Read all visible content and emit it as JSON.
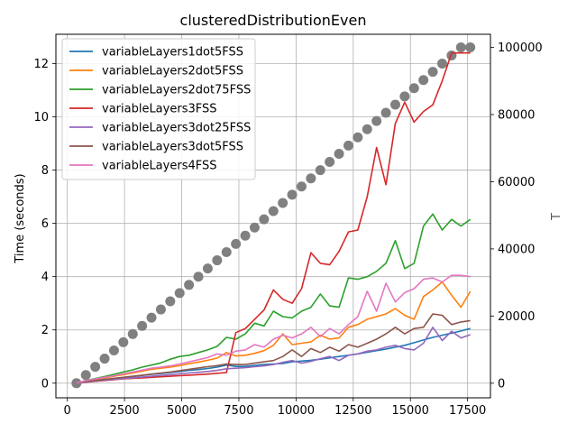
{
  "chart_data": {
    "type": "line",
    "title": "clusteredDistributionEven",
    "xlabel": "",
    "ylabel": "Time (seconds)",
    "y2label": "T",
    "xlim": [
      -500,
      18500
    ],
    "ylim": [
      -0.55,
      13.1
    ],
    "y2lim": [
      -4350,
      103900
    ],
    "xticks": [
      0,
      2500,
      5000,
      7500,
      10000,
      12500,
      15000,
      17500
    ],
    "yticks": [
      0,
      2,
      4,
      6,
      8,
      10,
      12
    ],
    "y2ticks": [
      0,
      20000,
      40000,
      60000,
      80000,
      100000
    ],
    "grid": true,
    "legend_position": "upper-left",
    "x": [
      400,
      810,
      1220,
      1630,
      2040,
      2450,
      2860,
      3270,
      3680,
      4090,
      4500,
      4910,
      5320,
      5730,
      6140,
      6550,
      6960,
      7370,
      7780,
      8190,
      8600,
      9010,
      9420,
      9830,
      10240,
      10650,
      11060,
      11470,
      11880,
      12290,
      12700,
      13110,
      13520,
      13930,
      14340,
      14750,
      15160,
      15570,
      15980,
      16390,
      16800,
      17210,
      17620
    ],
    "series": [
      {
        "name": "variableLayers1dot5FSS",
        "color": "#1f77b4",
        "values": [
          0,
          0.05,
          0.09,
          0.13,
          0.17,
          0.21,
          0.25,
          0.29,
          0.33,
          0.36,
          0.4,
          0.44,
          0.48,
          0.51,
          0.55,
          0.6,
          0.68,
          0.63,
          0.63,
          0.67,
          0.7,
          0.72,
          0.74,
          0.8,
          0.83,
          0.86,
          0.9,
          0.95,
          1.0,
          1.05,
          1.1,
          1.16,
          1.22,
          1.28,
          1.35,
          1.42,
          1.52,
          1.62,
          1.72,
          1.8,
          1.88,
          1.96,
          2.05
        ]
      },
      {
        "name": "variableLayers2dot5FSS",
        "color": "#ff7f0e",
        "values": [
          0,
          0.08,
          0.14,
          0.2,
          0.26,
          0.32,
          0.38,
          0.45,
          0.52,
          0.56,
          0.6,
          0.66,
          0.73,
          0.79,
          0.86,
          0.94,
          1.15,
          1.02,
          1.05,
          1.12,
          1.22,
          1.42,
          1.85,
          1.45,
          1.5,
          1.55,
          1.8,
          1.65,
          1.7,
          2.1,
          2.2,
          2.4,
          2.5,
          2.6,
          2.8,
          2.55,
          2.4,
          3.25,
          3.5,
          3.8,
          3.3,
          2.85,
          3.45
        ]
      },
      {
        "name": "variableLayers2dot75FSS",
        "color": "#2ca02c",
        "values": [
          0,
          0.1,
          0.17,
          0.25,
          0.33,
          0.42,
          0.5,
          0.6,
          0.68,
          0.76,
          0.9,
          1.0,
          1.05,
          1.15,
          1.25,
          1.38,
          1.72,
          1.65,
          1.85,
          2.25,
          2.15,
          2.7,
          2.5,
          2.45,
          2.7,
          2.85,
          3.35,
          2.9,
          2.85,
          3.95,
          3.9,
          4.0,
          4.2,
          4.5,
          5.35,
          4.3,
          4.5,
          5.9,
          6.35,
          5.75,
          6.15,
          5.9,
          6.15
        ]
      },
      {
        "name": "variableLayers3FSS",
        "color": "#d62728",
        "values": [
          0,
          0.04,
          0.07,
          0.1,
          0.13,
          0.16,
          0.18,
          0.2,
          0.22,
          0.24,
          0.26,
          0.28,
          0.3,
          0.32,
          0.34,
          0.37,
          0.4,
          1.9,
          2.05,
          2.4,
          2.75,
          3.5,
          3.15,
          3.0,
          3.55,
          4.9,
          4.5,
          4.45,
          4.95,
          5.68,
          5.75,
          7.0,
          8.85,
          7.45,
          9.75,
          10.55,
          9.8,
          10.2,
          10.45,
          11.35,
          12.4,
          12.4,
          12.4
        ]
      },
      {
        "name": "variableLayers3dot25FSS",
        "color": "#9467bd",
        "values": [
          0,
          0.05,
          0.08,
          0.11,
          0.14,
          0.17,
          0.2,
          0.23,
          0.26,
          0.29,
          0.32,
          0.35,
          0.38,
          0.41,
          0.44,
          0.48,
          0.54,
          0.56,
          0.58,
          0.62,
          0.65,
          0.7,
          0.78,
          0.85,
          0.75,
          0.82,
          0.92,
          1.0,
          0.85,
          1.05,
          1.1,
          1.2,
          1.25,
          1.35,
          1.42,
          1.3,
          1.25,
          1.5,
          2.1,
          1.6,
          1.95,
          1.7,
          1.82
        ]
      },
      {
        "name": "variableLayers3dot5FSS",
        "color": "#8c564b",
        "values": [
          0,
          0.06,
          0.1,
          0.14,
          0.18,
          0.22,
          0.26,
          0.3,
          0.34,
          0.38,
          0.42,
          0.47,
          0.52,
          0.57,
          0.62,
          0.66,
          0.72,
          0.7,
          0.7,
          0.75,
          0.8,
          0.85,
          1.0,
          1.25,
          1.0,
          1.3,
          1.15,
          1.35,
          1.2,
          1.45,
          1.35,
          1.5,
          1.65,
          1.85,
          2.1,
          1.85,
          2.05,
          2.1,
          2.6,
          2.55,
          2.2,
          2.3,
          2.35
        ]
      },
      {
        "name": "variableLayers4FSS",
        "color": "#e377c2",
        "values": [
          0,
          0.1,
          0.16,
          0.22,
          0.28,
          0.35,
          0.42,
          0.49,
          0.56,
          0.6,
          0.65,
          0.72,
          0.8,
          0.88,
          0.96,
          1.1,
          1.05,
          1.2,
          1.25,
          1.45,
          1.35,
          1.65,
          1.8,
          1.7,
          1.85,
          2.1,
          1.75,
          2.05,
          1.85,
          2.2,
          2.5,
          3.45,
          2.7,
          3.75,
          3.05,
          3.4,
          3.55,
          3.9,
          3.95,
          3.8,
          4.05,
          4.05,
          4.0
        ]
      }
    ],
    "secondary_series": {
      "name": "T",
      "color": "#808080",
      "axis": "right",
      "style": "markers",
      "values": [
        0,
        2440,
        4880,
        7320,
        9760,
        12200,
        14640,
        17080,
        19520,
        21960,
        24400,
        26840,
        29280,
        31720,
        34160,
        36600,
        39040,
        41480,
        43920,
        46360,
        48800,
        51240,
        53680,
        56120,
        58560,
        61000,
        63440,
        65880,
        68320,
        70760,
        73200,
        75640,
        78080,
        80520,
        82960,
        85400,
        87840,
        90280,
        92720,
        95160,
        97600,
        100000,
        100000
      ]
    }
  }
}
